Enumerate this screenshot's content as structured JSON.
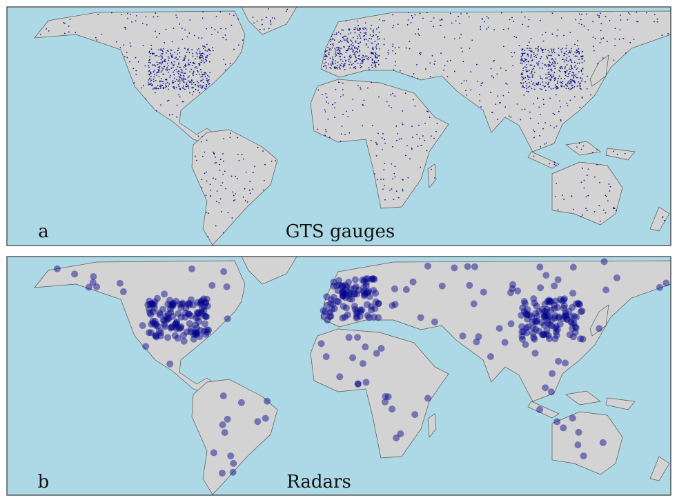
{
  "panels": [
    {
      "letter": "a",
      "label": "GTS gauges"
    },
    {
      "letter": "b",
      "label": "Radars"
    }
  ]
}
